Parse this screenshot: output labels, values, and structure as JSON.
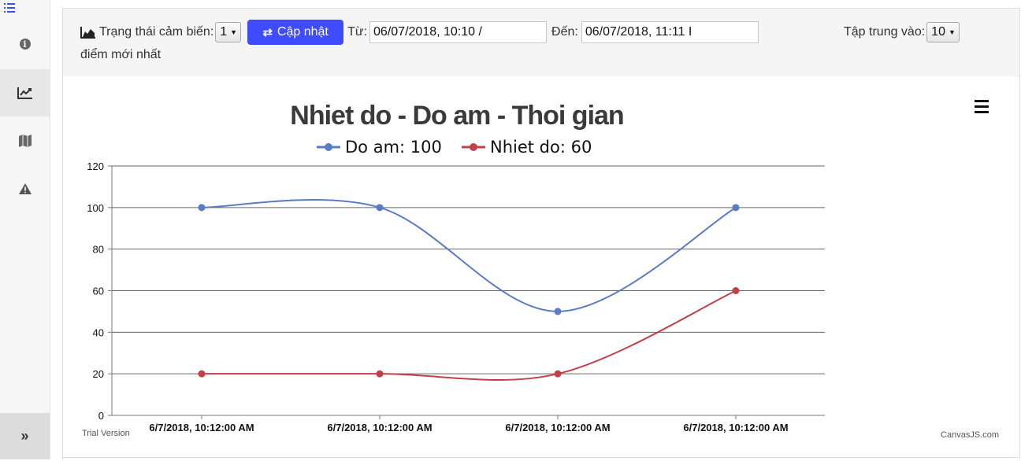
{
  "sidebar": {
    "toggle_icon": "list-ordered-icon",
    "items": [
      {
        "icon": "info-icon"
      },
      {
        "icon": "line-chart-icon",
        "active": true
      },
      {
        "icon": "map-icon"
      },
      {
        "icon": "warning-icon"
      }
    ],
    "collapse_label": "»"
  },
  "toolbar": {
    "sensor_label": "Trạng thái cảm biến:",
    "sensor_value": "1",
    "update_label": "Cập nhật",
    "from_label": "Từ:",
    "from_value": "06/07/2018, 10:10 /",
    "to_label": "Đến:",
    "to_value": "06/07/2018, 11:11 I",
    "focus_label": "Tập trung vào:",
    "focus_value": "10",
    "focus_suffix": "điểm mới nhất",
    "accent_color": "#3f4bff"
  },
  "chart_data": {
    "type": "line",
    "title": "Nhiet do - Do am - Thoi gian",
    "categories": [
      "6/7/2018, 10:12:00 AM",
      "6/7/2018, 10:12:00 AM",
      "6/7/2018, 10:12:00 AM",
      "6/7/2018, 10:12:00 AM"
    ],
    "series": [
      {
        "name": "Do am: 100",
        "color": "#5b7bc6",
        "values": [
          100,
          100,
          50,
          100
        ]
      },
      {
        "name": "Nhiet do: 60",
        "color": "#c2404a",
        "values": [
          20,
          20,
          20,
          60
        ]
      }
    ],
    "ylim": [
      0,
      120
    ],
    "yticks": [
      0,
      20,
      40,
      60,
      80,
      100,
      120
    ],
    "grid": true,
    "legend": "top",
    "watermark_left": "Trial Version",
    "watermark_right": "CanvasJS.com"
  }
}
